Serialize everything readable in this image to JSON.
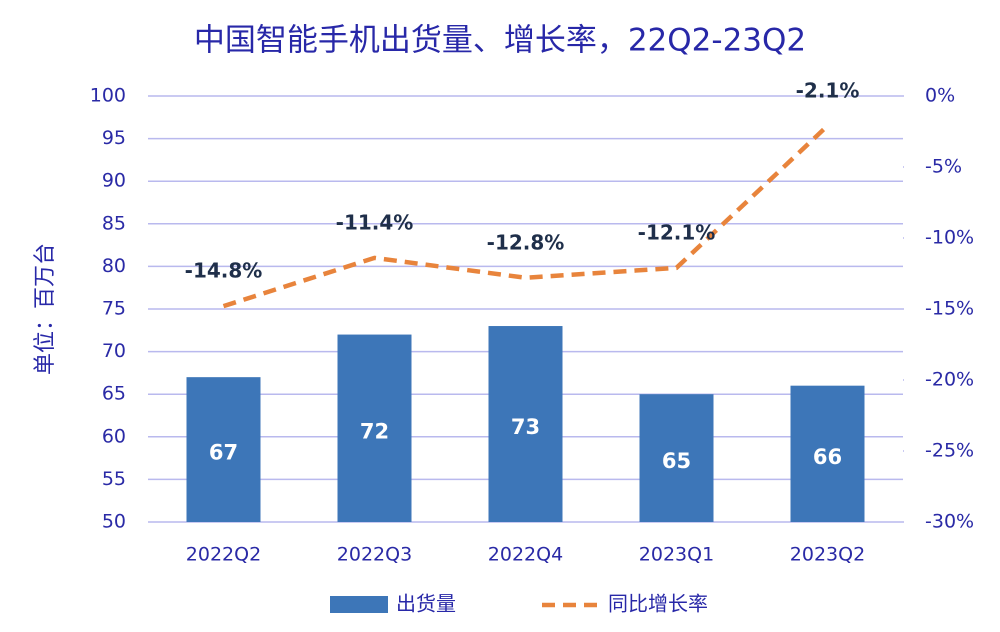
{
  "chart_data": {
    "type": "bar",
    "title": "中国智能手机出货量、增长率，22Q2-23Q2",
    "y_axis_label": "单位：百万台",
    "categories": [
      "2022Q2",
      "2022Q3",
      "2022Q4",
      "2023Q1",
      "2023Q2"
    ],
    "series": [
      {
        "name": "出货量",
        "type": "bar",
        "color": "#3d76b8",
        "values": [
          67,
          72,
          73,
          65,
          66
        ]
      },
      {
        "name": "同比增长率",
        "type": "line",
        "axis": "y2",
        "color": "#e8843c",
        "values": [
          -14.8,
          -11.4,
          -12.8,
          -12.1,
          -2.1
        ],
        "value_labels": [
          "-14.8%",
          "-11.4%",
          "-12.8%",
          "-12.1%",
          "-2.1%"
        ]
      }
    ],
    "ylim": [
      50,
      100
    ],
    "yticks": [
      50,
      55,
      60,
      65,
      70,
      75,
      80,
      85,
      90,
      95,
      100
    ],
    "y2lim": [
      -30,
      0
    ],
    "y2ticks": [
      {
        "value": -30,
        "label": "-30%"
      },
      {
        "value": -25,
        "label": "-25%"
      },
      {
        "value": -20,
        "label": "-20%"
      },
      {
        "value": -15,
        "label": "-15%"
      },
      {
        "value": -10,
        "label": "-10%"
      },
      {
        "value": -5,
        "label": "-5%"
      },
      {
        "value": 0,
        "label": "0%"
      }
    ],
    "grid": true,
    "legend": "bottom"
  }
}
